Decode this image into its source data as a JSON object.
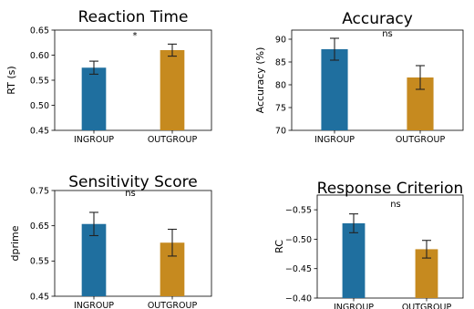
{
  "chart_data": [
    {
      "type": "bar",
      "title": "Reaction Time",
      "ylabel": "RT (s)",
      "xlabel": "",
      "categories": [
        "INGROUP",
        "OUTGROUP"
      ],
      "values": [
        0.575,
        0.61
      ],
      "errors": [
        0.013,
        0.012
      ],
      "ylim": [
        0.45,
        0.65
      ],
      "yticks": [
        0.45,
        0.5,
        0.55,
        0.6,
        0.65
      ],
      "ytick_labels": [
        "0.45",
        "0.50",
        "0.55",
        "0.60",
        "0.65"
      ],
      "colors": [
        "#1f6f9f",
        "#c68a1f"
      ],
      "annotation": "*",
      "grid": false
    },
    {
      "type": "bar",
      "title": "Accuracy",
      "ylabel": "Accuracy (%)",
      "xlabel": "",
      "categories": [
        "INGROUP",
        "OUTGROUP"
      ],
      "values": [
        87.8,
        81.6
      ],
      "errors": [
        2.4,
        2.6
      ],
      "ylim": [
        70,
        92
      ],
      "yticks": [
        70,
        75,
        80,
        85,
        90
      ],
      "ytick_labels": [
        "70",
        "75",
        "80",
        "85",
        "90"
      ],
      "colors": [
        "#1f6f9f",
        "#c68a1f"
      ],
      "annotation": "ns",
      "grid": false
    },
    {
      "type": "bar",
      "title": "Sensitivity Score",
      "ylabel": "dprime",
      "xlabel": "",
      "categories": [
        "INGROUP",
        "OUTGROUP"
      ],
      "values": [
        0.655,
        0.602
      ],
      "errors": [
        0.033,
        0.038
      ],
      "ylim": [
        0.45,
        0.75
      ],
      "yticks": [
        0.45,
        0.55,
        0.65,
        0.75
      ],
      "ytick_labels": [
        "0.45",
        "0.55",
        "0.65",
        "0.75"
      ],
      "colors": [
        "#1f6f9f",
        "#c68a1f"
      ],
      "annotation": "ns",
      "grid": false
    },
    {
      "type": "bar",
      "title": "Response Criterion",
      "ylabel": "RC",
      "xlabel": "",
      "categories": [
        "INGROUP",
        "OUTGROUP"
      ],
      "values": [
        -0.527,
        -0.483
      ],
      "errors": [
        0.016,
        0.015
      ],
      "ylim": [
        -0.4,
        -0.575
      ],
      "inverted_y": true,
      "yticks": [
        -0.55,
        -0.5,
        -0.45,
        -0.4
      ],
      "ytick_labels": [
        "−0.55",
        "−0.50",
        "−0.45",
        "−0.40"
      ],
      "colors": [
        "#1f6f9f",
        "#c68a1f"
      ],
      "annotation": "ns",
      "grid": false
    }
  ]
}
